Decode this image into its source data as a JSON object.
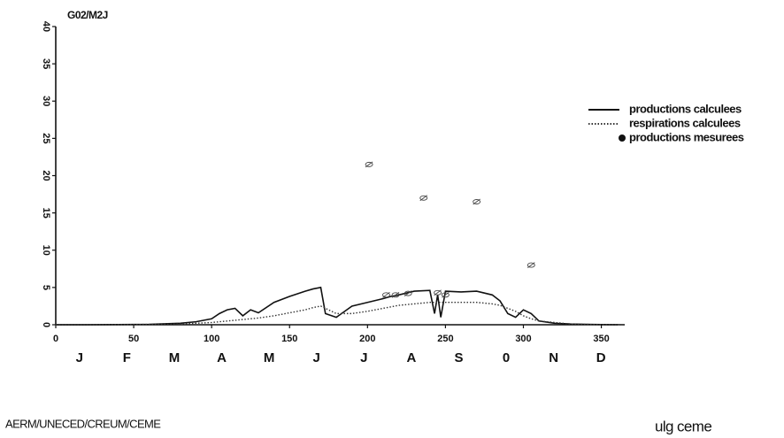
{
  "chart_data": {
    "type": "line",
    "y_label": "G02/M2J",
    "x": [
      0,
      20,
      40,
      60,
      80,
      90,
      100,
      105,
      110,
      115,
      120,
      125,
      130,
      140,
      150,
      160,
      165,
      170,
      173,
      180,
      190,
      200,
      210,
      215,
      220,
      230,
      240,
      243,
      245,
      247,
      250,
      260,
      270,
      280,
      285,
      290,
      295,
      300,
      305,
      310,
      320,
      330,
      340,
      350,
      365
    ],
    "series": [
      {
        "name": "productions calculees",
        "type": "line",
        "color": "#111111",
        "values": [
          0,
          0,
          0.02,
          0.05,
          0.2,
          0.4,
          0.8,
          1.5,
          2,
          2.2,
          1.2,
          2,
          1.6,
          3,
          3.8,
          4.5,
          4.8,
          5,
          1.5,
          1,
          2.5,
          3,
          3.5,
          3.8,
          4,
          4.5,
          4.6,
          1.5,
          4,
          1,
          4.5,
          4.4,
          4.5,
          4,
          3.2,
          1.5,
          1,
          2,
          1.5,
          0.5,
          0.2,
          0.1,
          0.05,
          0.02,
          0
        ]
      },
      {
        "name": "respirations calculees",
        "type": "dotted",
        "color": "#333333",
        "values": [
          0,
          0,
          0.02,
          0.05,
          0.1,
          0.2,
          0.3,
          0.4,
          0.5,
          0.6,
          0.7,
          0.8,
          0.9,
          1.2,
          1.6,
          2,
          2.3,
          2.5,
          2.2,
          1.5,
          1.5,
          1.8,
          2.2,
          2.4,
          2.6,
          2.8,
          3,
          3,
          3,
          3,
          3,
          3,
          3,
          2.8,
          2.6,
          2.2,
          1.8,
          1.2,
          0.8,
          0.5,
          0.3,
          0.1,
          0.05,
          0.02,
          0
        ]
      },
      {
        "name": "productions mesurees",
        "type": "scatter",
        "color": "#444444",
        "x": [
          201,
          212,
          218,
          226,
          236,
          245,
          250,
          270,
          305
        ],
        "values": [
          21.5,
          4,
          4,
          4.2,
          17,
          4.3,
          4,
          16.5,
          8
        ]
      }
    ],
    "months": [
      "J",
      "F",
      "M",
      "A",
      "M",
      "J",
      "J",
      "A",
      "S",
      "0",
      "N",
      "D"
    ],
    "xlim": [
      0,
      365
    ],
    "xticks": [
      0,
      50,
      100,
      150,
      200,
      250,
      300,
      350
    ],
    "ylim": [
      0,
      40
    ],
    "yticks": [
      0,
      5,
      10,
      15,
      20,
      25,
      30,
      35,
      40
    ],
    "legend": "right"
  },
  "footer": {
    "left": "AERM/UNECED/CREUM/CEME",
    "right": "ulg ceme"
  }
}
